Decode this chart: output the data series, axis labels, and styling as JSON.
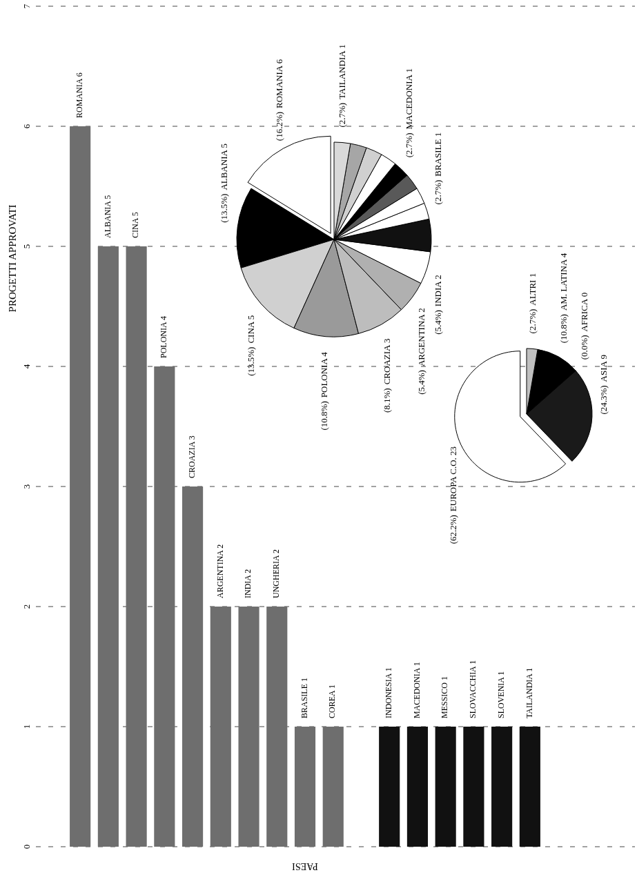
{
  "chart_data": [
    {
      "type": "bar",
      "xlabel": "PAESI",
      "ylabel": "PROGETTI APPROVATI",
      "categories": [
        "ROMANIA 6",
        "ALBANIA 5",
        "CINA 5",
        "POLONIA 4",
        "CROAZIA 3",
        "ARGENTINA 2",
        "INDIA 2",
        "UNGHERIA 2",
        "BRASILE 1",
        "COREA 1",
        null,
        "INDONESIA 1",
        "MACEDONIA 1",
        "MESSICO 1",
        "SLOVACCHIA 1",
        "SLOVENIA 1",
        "TAILANDIA 1"
      ],
      "values": [
        6,
        5,
        5,
        4,
        3,
        2,
        2,
        2,
        1,
        1,
        null,
        1,
        1,
        1,
        1,
        1,
        1
      ],
      "colors": [
        "#6e6e6e",
        "#6e6e6e",
        "#6e6e6e",
        "#6e6e6e",
        "#6e6e6e",
        "#6e6e6e",
        "#6e6e6e",
        "#6e6e6e",
        "#6e6e6e",
        "#6e6e6e",
        null,
        "#111111",
        "#111111",
        "#111111",
        "#111111",
        "#111111",
        "#111111"
      ],
      "ylim": [
        0,
        7
      ],
      "yticks": [
        0,
        1,
        2,
        3,
        4,
        5,
        6,
        7
      ],
      "grid": "y"
    },
    {
      "type": "pie",
      "categories": [
        "ROMANIA 6",
        "ALBANIA 5",
        "CINA 5",
        "POLONIA 4",
        "CROAZIA 3",
        "ARGENTINA 2",
        "INDIA 2",
        null,
        "BRASILE 1",
        null,
        null,
        "MACEDONIA 1",
        null,
        null,
        null,
        "TAILANDIA 1"
      ],
      "values": [
        16.2,
        13.5,
        13.5,
        10.8,
        8.1,
        5.4,
        5.4,
        5.4,
        2.7,
        2.7,
        2.7,
        2.7,
        2.7,
        2.7,
        2.7,
        2.7
      ],
      "value_labels": [
        "(16.2%)",
        "(13.5%)",
        "(13.5%)",
        "(10.8%)",
        "(8.1%)",
        "(5.4%)",
        "(5.4%)",
        null,
        "(2.7%)",
        null,
        null,
        "(2.7%)",
        null,
        null,
        null,
        "(2.7%)"
      ],
      "colors": [
        "#ffffff",
        "#000000",
        "#d0d0d0",
        "#9a9a9a",
        "#bdbdbd",
        "#b0b0b0",
        "#ffffff",
        "#111111",
        "#ffffff",
        "#ffffff",
        "#595959",
        "#000000",
        "#ffffff",
        "#d0d0d0",
        "#a6a6a6",
        "#d9d9d9"
      ]
    },
    {
      "type": "pie",
      "categories": [
        "EUROPA C.O. 23",
        "ASIA 9",
        "AFRICA 0",
        "AM. LATINA 4",
        "ALTRI 1"
      ],
      "values": [
        62.2,
        24.3,
        0,
        10.8,
        2.7
      ],
      "value_labels": [
        "(62.2%)",
        "(24.3%)",
        "(0.0%)",
        "(10.8%)",
        "(2.7%)"
      ],
      "colors": [
        "#ffffff",
        "#1a1a1a",
        null,
        "#000000",
        "#c0c0c0"
      ]
    }
  ]
}
